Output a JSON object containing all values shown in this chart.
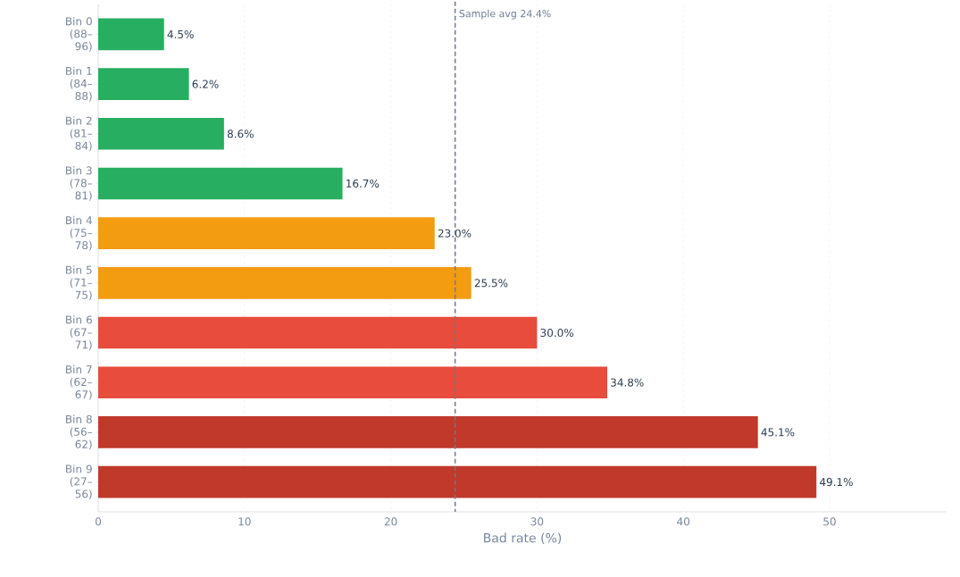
{
  "chart_data": {
    "type": "bar",
    "orientation": "horizontal",
    "xlabel": "Bad rate (%)",
    "categories": [
      "Bin 0 (88–96)",
      "Bin 1 (84–88)",
      "Bin 2 (81–84)",
      "Bin 3 (78–81)",
      "Bin 4 (75–78)",
      "Bin 5 (71–75)",
      "Bin 6 (67–71)",
      "Bin 7 (62–67)",
      "Bin 8 (56–62)",
      "Bin 9 (27–56)"
    ],
    "values": [
      4.5,
      6.2,
      8.6,
      16.7,
      23.0,
      25.5,
      30.0,
      34.8,
      45.1,
      49.1
    ],
    "value_labels": [
      "4.5%",
      "6.2%",
      "8.6%",
      "16.7%",
      "23.0%",
      "25.5%",
      "30.0%",
      "34.8%",
      "45.1%",
      "49.1%"
    ],
    "colors": [
      "#27ae60",
      "#27ae60",
      "#27ae60",
      "#27ae60",
      "#f39c12",
      "#f39c12",
      "#e74c3c",
      "#e74c3c",
      "#c0392b",
      "#c0392b"
    ],
    "xlim": [
      0,
      58
    ],
    "xticks": [
      0,
      10,
      20,
      30,
      40,
      50
    ],
    "grid": "x",
    "ref_lines": [
      {
        "axis": "x",
        "value": 24.4,
        "label": "Sample avg 24.4%",
        "color": "#6b7a90",
        "line_style": "dashed"
      }
    ]
  }
}
